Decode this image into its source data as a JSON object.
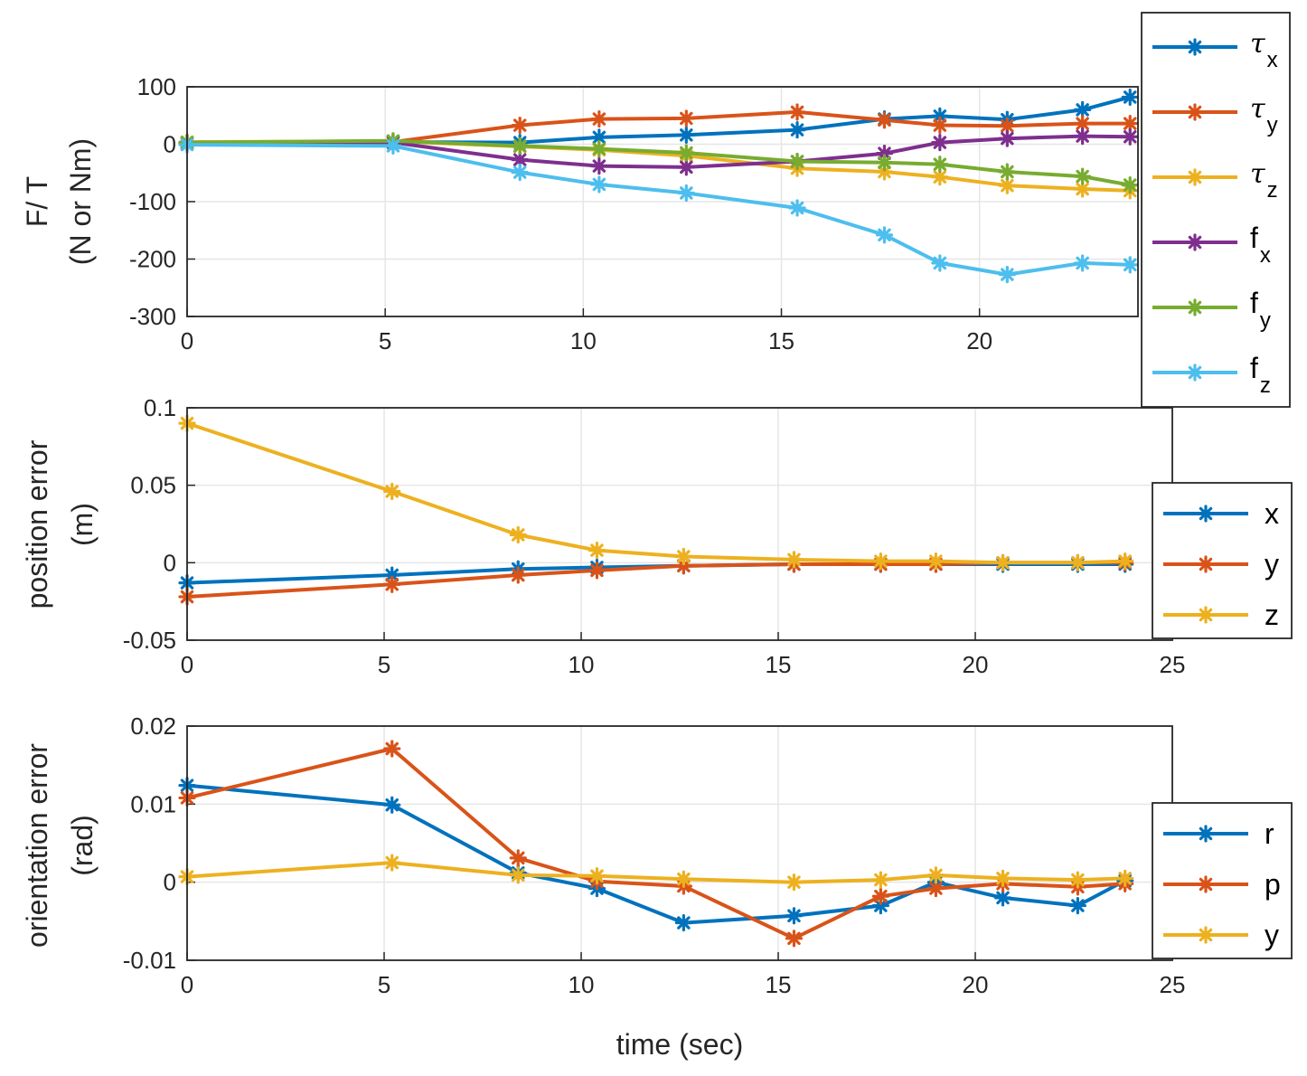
{
  "colors": {
    "blue": "#0072BD",
    "orange": "#D95319",
    "yellow": "#EDB120",
    "purple": "#7E2F8E",
    "green": "#77AC30",
    "cyan": "#4DBEEE"
  },
  "marker_icon": "asterisk",
  "xlabel": "time (sec)",
  "chart_data": [
    {
      "type": "line",
      "ylabel_line1": "F/ T",
      "ylabel_line2": "(N or Nm)",
      "xlim": [
        0,
        24
      ],
      "ylim": [
        -300,
        100
      ],
      "xticks": [
        "0",
        "5",
        "10",
        "15",
        "20"
      ],
      "yticks": [
        "100",
        "0",
        "-100",
        "-200",
        "-300"
      ],
      "grid": true,
      "legend_position": "outside-right",
      "x": [
        0,
        5.2,
        8.4,
        10.4,
        12.6,
        15.4,
        17.6,
        19.0,
        20.7,
        22.6,
        23.8
      ],
      "series": [
        {
          "name": "τx",
          "color_key": "blue",
          "values": [
            2,
            4,
            3,
            12,
            16,
            25,
            44,
            49,
            43,
            60,
            82
          ]
        },
        {
          "name": "τy",
          "color_key": "orange",
          "values": [
            3,
            4,
            33,
            44,
            45,
            56,
            42,
            33,
            32,
            36,
            36
          ]
        },
        {
          "name": "τz",
          "color_key": "yellow",
          "values": [
            4,
            5,
            -4,
            -10,
            -20,
            -42,
            -48,
            -57,
            -72,
            -78,
            -81
          ]
        },
        {
          "name": "fx",
          "color_key": "purple",
          "values": [
            2,
            3,
            -27,
            -38,
            -40,
            -30,
            -16,
            3,
            10,
            14,
            13
          ]
        },
        {
          "name": "fy",
          "color_key": "green",
          "values": [
            3,
            6,
            -3,
            -8,
            -15,
            -30,
            -32,
            -35,
            -48,
            -56,
            -71
          ]
        },
        {
          "name": "fz",
          "color_key": "cyan",
          "values": [
            -1,
            -3,
            -49,
            -70,
            -85,
            -111,
            -158,
            -207,
            -227,
            -207,
            -210
          ]
        }
      ]
    },
    {
      "type": "line",
      "ylabel_line1": "position error",
      "ylabel_line2": "(m)",
      "xlim": [
        0,
        25
      ],
      "ylim": [
        -0.05,
        0.1
      ],
      "xticks": [
        "0",
        "5",
        "10",
        "15",
        "20",
        "25"
      ],
      "yticks": [
        "0.1",
        "0.05",
        "0",
        "-0.05"
      ],
      "grid": true,
      "legend_position": "right",
      "x": [
        0,
        5.2,
        8.4,
        10.4,
        12.6,
        15.4,
        17.6,
        19.0,
        20.7,
        22.6,
        23.8
      ],
      "series": [
        {
          "name": "x",
          "color_key": "blue",
          "values": [
            -0.013,
            -0.008,
            -0.004,
            -0.003,
            -0.002,
            -0.001,
            -0.001,
            -0.001,
            -0.001,
            -0.001,
            -0.001
          ]
        },
        {
          "name": "y",
          "color_key": "orange",
          "values": [
            -0.022,
            -0.014,
            -0.008,
            -0.005,
            -0.002,
            -0.001,
            -0.001,
            -0.001,
            0.0,
            0.0,
            0.0
          ]
        },
        {
          "name": "z",
          "color_key": "yellow",
          "values": [
            0.09,
            0.046,
            0.018,
            0.008,
            0.004,
            0.002,
            0.001,
            0.001,
            0.0,
            0.0,
            0.001
          ]
        }
      ]
    },
    {
      "type": "line",
      "ylabel_line1": "orientation error",
      "ylabel_line2": "(rad)",
      "xlim": [
        0,
        25
      ],
      "ylim": [
        -0.01,
        0.02
      ],
      "xticks": [
        "0",
        "5",
        "10",
        "15",
        "20",
        "25"
      ],
      "yticks": [
        "0.02",
        "0.01",
        "0",
        "-0.01"
      ],
      "grid": true,
      "legend_position": "right",
      "x": [
        0,
        5.2,
        8.4,
        10.4,
        12.6,
        15.4,
        17.6,
        19.0,
        20.7,
        22.6,
        23.8
      ],
      "series": [
        {
          "name": "r",
          "color_key": "blue",
          "values": [
            0.0124,
            0.0099,
            0.0012,
            -0.0008,
            -0.0052,
            -0.0043,
            -0.003,
            0.0,
            -0.002,
            -0.003,
            0.0002
          ]
        },
        {
          "name": "p",
          "color_key": "orange",
          "values": [
            0.0108,
            0.0171,
            0.0031,
            0.0001,
            -0.0005,
            -0.0072,
            -0.0018,
            -0.0008,
            -0.0002,
            -0.0006,
            -0.0002
          ]
        },
        {
          "name": "y",
          "color_key": "yellow",
          "values": [
            0.0007,
            0.0025,
            0.0009,
            0.0008,
            0.0004,
            0.0,
            0.0003,
            0.0009,
            0.0005,
            0.0003,
            0.0005
          ]
        }
      ]
    }
  ]
}
